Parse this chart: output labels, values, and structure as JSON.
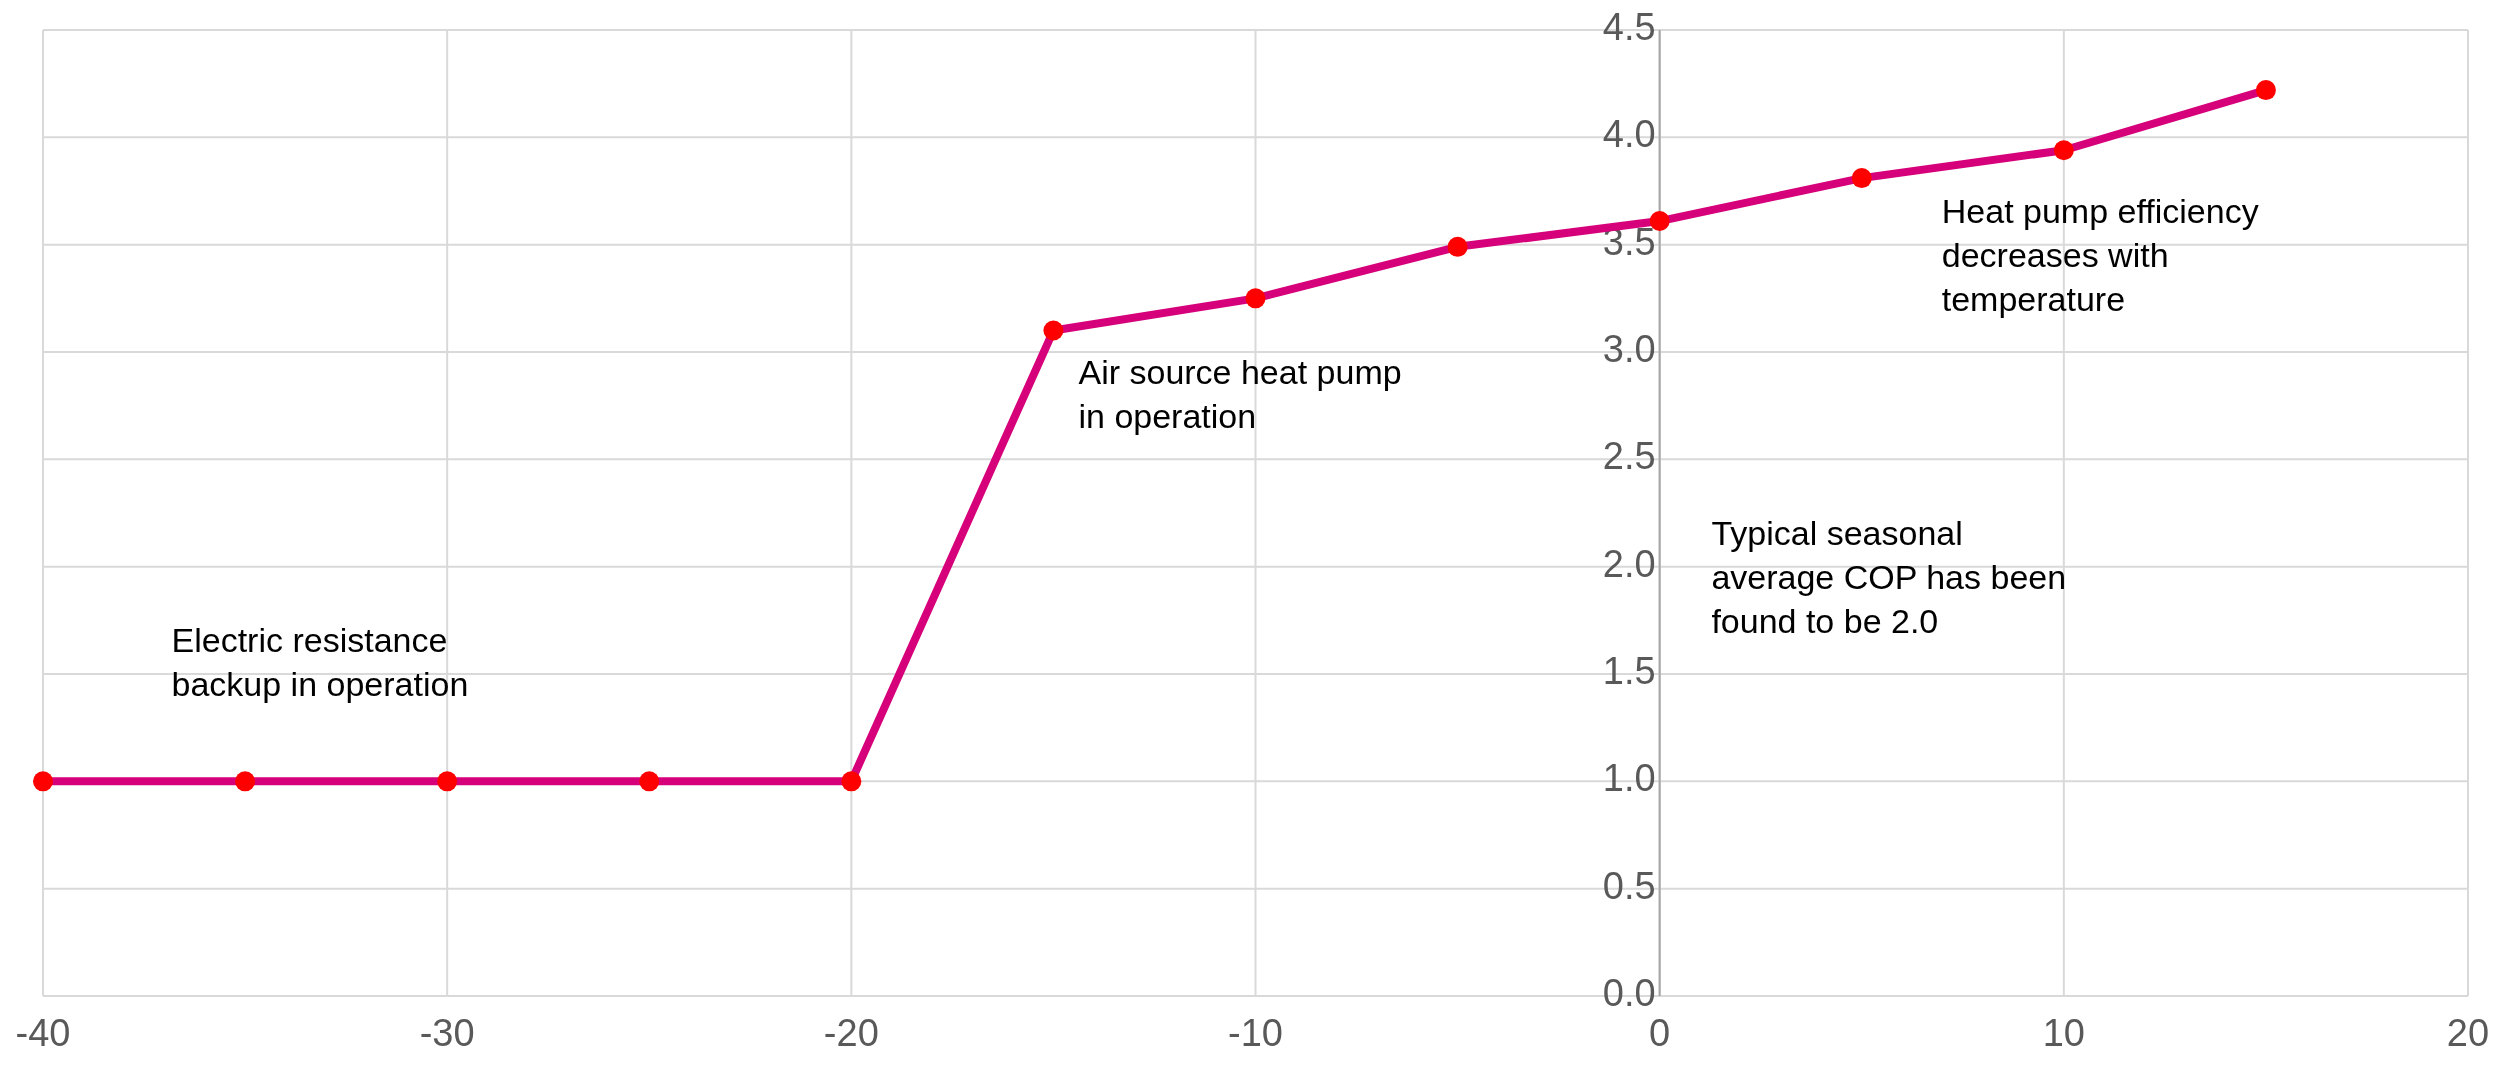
{
  "chart_data": {
    "type": "line",
    "x": [
      -40,
      -35,
      -30,
      -25,
      -20,
      -15,
      -10,
      -5,
      0,
      5,
      10,
      15
    ],
    "series": [
      {
        "color": "#d6007b",
        "values": [
          1,
          1,
          1,
          1,
          1,
          3.1,
          3.25,
          3.49,
          3.61,
          3.81,
          3.94,
          4.22
        ]
      }
    ],
    "marker": "circle",
    "line_style": "solid",
    "grid": true,
    "xlim": [
      -40,
      20
    ],
    "xticks": [
      -40,
      -30,
      -20,
      -10,
      0,
      10,
      20
    ],
    "ylim": [
      0,
      4.5
    ],
    "yticks": [
      {
        "value": 0,
        "label": "0.0"
      },
      {
        "value": 0.5,
        "label": "0.5"
      },
      {
        "value": 1,
        "label": "1.0"
      },
      {
        "value": 1.5,
        "label": "1.5"
      },
      {
        "value": 2,
        "label": "2.0"
      },
      {
        "value": 2.5,
        "label": "2.5"
      },
      {
        "value": 3,
        "label": "3.0"
      },
      {
        "value": 3.5,
        "label": "3.5"
      },
      {
        "value": 4,
        "label": "4.0"
      },
      {
        "value": 4.5,
        "label": "4.5"
      }
    ],
    "annotations": [
      "Electric resistance backup in operation",
      "Air source heat pump in operation",
      "Heat pump efficiency decreases with temperature",
      "Typical seasonal average COP has been found to be 2.0"
    ]
  }
}
